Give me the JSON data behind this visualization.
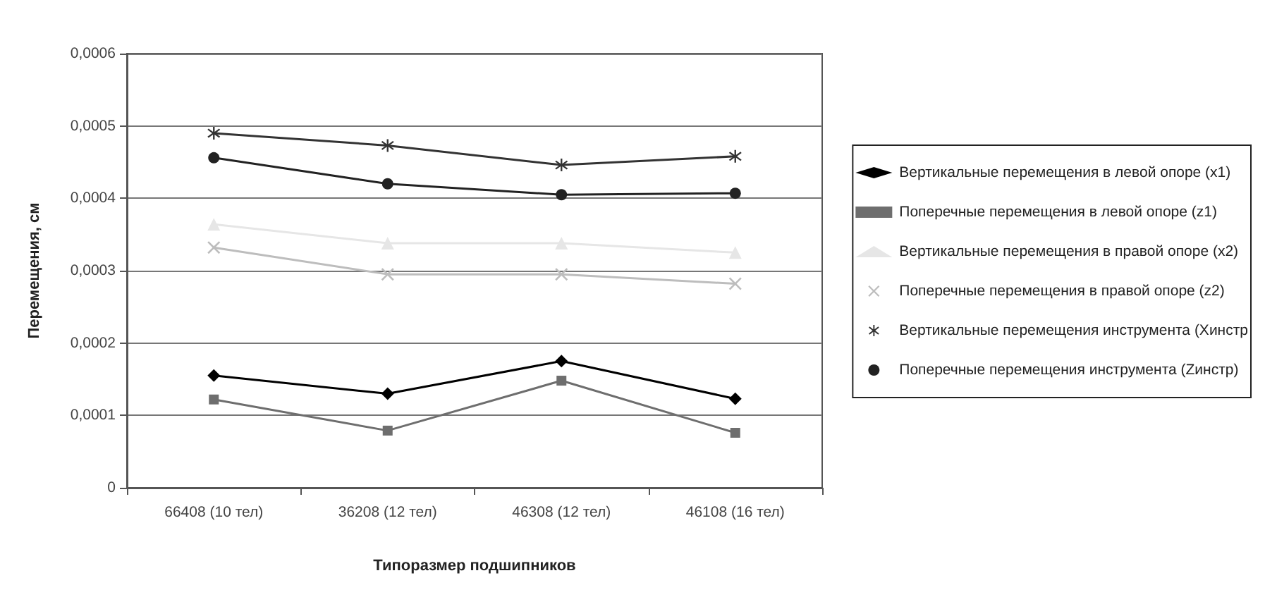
{
  "chart_data": {
    "type": "line",
    "xlabel": "Типоразмер подшипников",
    "ylabel": "Перемещения, см",
    "categories": [
      "66408 (10 тел)",
      "36208 (12 тел)",
      "46308 (12 тел)",
      "46108 (16 тел)"
    ],
    "series": [
      {
        "name": "Вертикальные перемещения в левой опоре (x1)",
        "color": "#000000",
        "marker": "diamond",
        "values": [
          0.000155,
          0.00013,
          0.000175,
          0.000123
        ]
      },
      {
        "name": "Поперечные перемещения в левой опоре (z1)",
        "color": "#6e6e6e",
        "marker": "square",
        "values": [
          0.000122,
          7.9e-05,
          0.000148,
          7.6e-05
        ]
      },
      {
        "name": "Вертикальные перемещения в правой опоре (x2)",
        "color": "#e6e6e6",
        "marker": "triangle",
        "values": [
          0.000364,
          0.000338,
          0.000338,
          0.000325
        ]
      },
      {
        "name": "Поперечные перемещения в правой опоре (z2)",
        "color": "#bdbdbd",
        "marker": "cross",
        "values": [
          0.000332,
          0.000295,
          0.000295,
          0.000282
        ]
      },
      {
        "name": "Вертикальные перемещения инструмента (Xинстр",
        "color": "#333333",
        "marker": "star",
        "values": [
          0.00049,
          0.000473,
          0.000446,
          0.000458
        ]
      },
      {
        "name": "Поперечные перемещения инструмента (Zинстр)",
        "color": "#222222",
        "marker": "circle",
        "values": [
          0.000456,
          0.00042,
          0.000405,
          0.000407
        ]
      }
    ],
    "ylim": [
      0,
      0.0006
    ],
    "yticks": [
      {
        "value": 0,
        "label": "0"
      },
      {
        "value": 0.0001,
        "label": "0,0001"
      },
      {
        "value": 0.0002,
        "label": "0,0002"
      },
      {
        "value": 0.0003,
        "label": "0,0003"
      },
      {
        "value": 0.0004,
        "label": "0,0004"
      },
      {
        "value": 0.0005,
        "label": "0,0005"
      },
      {
        "value": 0.0006,
        "label": "0,0006"
      }
    ],
    "grid": "y",
    "legend": "right",
    "line_style": "solid"
  }
}
